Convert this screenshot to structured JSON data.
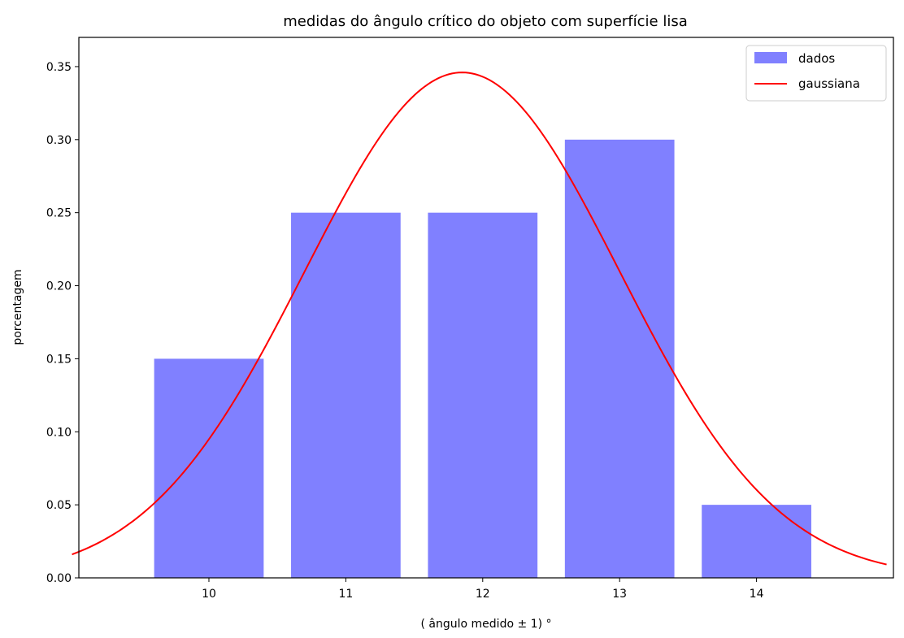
{
  "chart_data": {
    "type": "bar",
    "title": "medidas do ângulo crítico do objeto com superfície lisa",
    "xlabel": "( ângulo medido ± 1) °",
    "ylabel": "porcentagem",
    "categories": [
      10,
      11,
      12,
      13,
      14
    ],
    "x_tick_labels": [
      "10",
      "11",
      "12",
      "13",
      "14"
    ],
    "y_tick_labels": [
      "0.00",
      "0.05",
      "0.10",
      "0.15",
      "0.20",
      "0.25",
      "0.30",
      "0.35"
    ],
    "xlim": [
      9.05,
      15.0
    ],
    "ylim": [
      0,
      0.37
    ],
    "bar_width": 0.8,
    "grid": false,
    "legend_position": "top-right",
    "series": [
      {
        "name": "dados",
        "type": "bar",
        "color": "#8080ff",
        "x": [
          10,
          11,
          12,
          13,
          14
        ],
        "values": [
          0.15,
          0.25,
          0.25,
          0.3,
          0.05
        ]
      },
      {
        "name": "gaussiana",
        "type": "line",
        "color": "#ff0000",
        "mean": 11.85,
        "sigma": 1.15,
        "x_range": [
          9.0,
          14.95
        ],
        "peak": 0.346
      }
    ]
  }
}
